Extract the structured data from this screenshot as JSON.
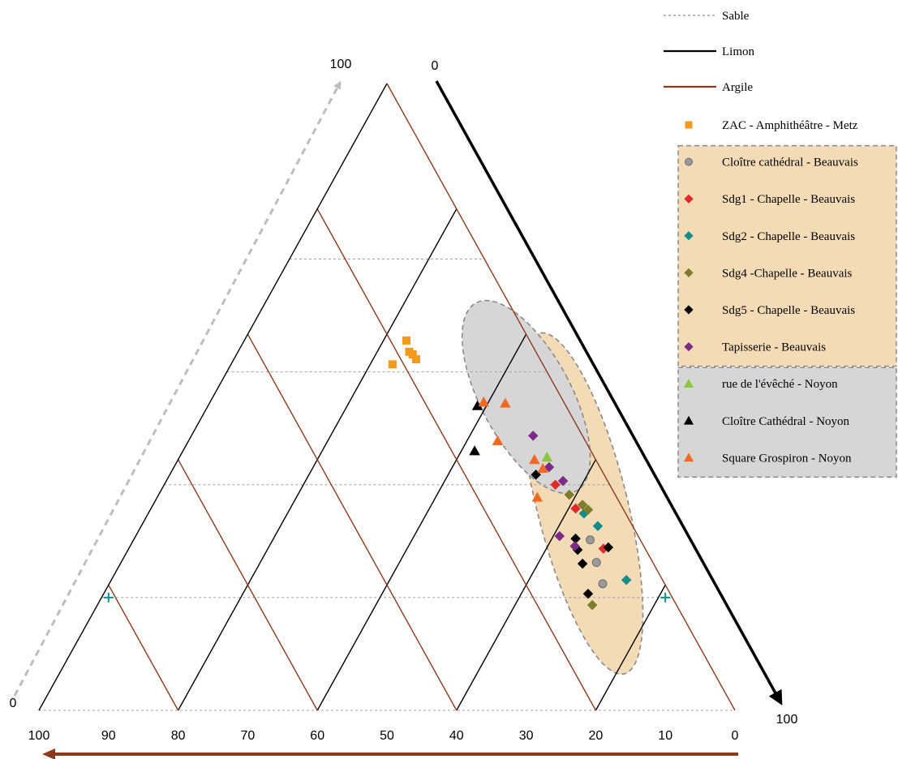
{
  "chart_data": {
    "type": "scatter",
    "subtype": "ternary",
    "axes": {
      "argile": {
        "name": "Argile",
        "ticks": [
          "100",
          "90",
          "80",
          "70",
          "60",
          "50",
          "40",
          "30",
          "20",
          "10",
          "0"
        ],
        "color": "#8b3a1e"
      },
      "sable": {
        "name": "Sable",
        "start_label": "0",
        "end_label": "100",
        "color": "#bdbdbd"
      },
      "limon": {
        "name": "Limon",
        "start_label": "0",
        "end_label": "100",
        "color": "#000000"
      }
    },
    "grid_lines": {
      "sable": {
        "name": "Sable",
        "color": "#a0a0a0",
        "style": "dotted",
        "values": [
          0,
          18,
          36,
          54,
          72
        ]
      },
      "limon": {
        "name": "Limon",
        "color": "#000000",
        "style": "solid",
        "values": [
          20,
          40,
          60,
          80
        ]
      },
      "argile": {
        "name": "Argile",
        "color": "#8b3a1e",
        "style": "solid",
        "values": [
          20,
          40,
          60,
          80
        ]
      }
    },
    "markers": [
      {
        "name": "calibration-mark",
        "argile": 90,
        "sable": 18,
        "color": "#1a8c8c"
      },
      {
        "name": "calibration-mark",
        "argile": 10,
        "sable": 18,
        "color": "#1a8c8c"
      }
    ],
    "groups": [
      {
        "name": "Beauvais",
        "color": "#f3dbb5",
        "cx": 22,
        "cy": 33,
        "rx": 6.5,
        "ry": 28,
        "angle": -14
      },
      {
        "name": "Noyon",
        "color": "#d6d6d6",
        "cx": 30,
        "cy": 50,
        "rx": 6.5,
        "ry": 17,
        "angle": -28
      }
    ],
    "legend": {
      "lines": [
        {
          "label": "Sable",
          "color": "#a0a0a0",
          "style": "dotted"
        },
        {
          "label": "Limon",
          "color": "#000000",
          "style": "solid"
        },
        {
          "label": "Argile",
          "color": "#8b3a1e",
          "style": "solid"
        }
      ],
      "series": [
        {
          "label": "ZAC - Amphithéâtre - Metz",
          "marker": "square",
          "color": "#f39a1e",
          "group": ""
        },
        {
          "label": "Cloître cathédral - Beauvais",
          "marker": "circle",
          "color": "#9a9a9a",
          "group": "Beauvais"
        },
        {
          "label": "Sdg1 - Chapelle - Beauvais",
          "marker": "diamond",
          "color": "#e32929",
          "group": "Beauvais"
        },
        {
          "label": "Sdg2 - Chapelle - Beauvais",
          "marker": "diamond",
          "color": "#158c8c",
          "group": "Beauvais"
        },
        {
          "label": "Sdg4 -Chapelle - Beauvais",
          "marker": "diamond",
          "color": "#7c7c2a",
          "group": "Beauvais"
        },
        {
          "label": "Sdg5 - Chapelle - Beauvais",
          "marker": "diamond",
          "color": "#000000",
          "group": "Beauvais"
        },
        {
          "label": "Tapisserie - Beauvais",
          "marker": "diamond",
          "color": "#7b2b86",
          "group": "Beauvais"
        },
        {
          "label": "rue de l'évêché - Noyon",
          "marker": "triangle",
          "color": "#8cc63f",
          "group": "Noyon"
        },
        {
          "label": "Cloître Cathédral - Noyon",
          "marker": "triangle",
          "color": "#000000",
          "group": "Noyon"
        },
        {
          "label": "Square Grospiron - Noyon",
          "marker": "triangle",
          "color": "#f26a21",
          "group": "Noyon"
        }
      ]
    },
    "series": [
      {
        "name": "ZAC - Amphithéâtre - Metz",
        "points": [
          [
            47.2,
            59.0
          ],
          [
            46.8,
            57.2
          ],
          [
            46.3,
            56.8
          ],
          [
            45.8,
            56.0
          ],
          [
            49.2,
            55.2
          ]
        ]
      },
      {
        "name": "Cloître cathédral - Beauvais",
        "points": [
          [
            20.8,
            27.2
          ],
          [
            19.9,
            23.6
          ],
          [
            19.0,
            20.2
          ]
        ]
      },
      {
        "name": "Sdg1 - Chapelle - Beauvais",
        "points": [
          [
            25.8,
            36.0
          ],
          [
            22.9,
            32.2
          ],
          [
            18.9,
            25.8
          ]
        ]
      },
      {
        "name": "Sdg2 - Chapelle - Beauvais",
        "points": [
          [
            21.7,
            31.4
          ],
          [
            19.7,
            29.4
          ],
          [
            15.6,
            20.8
          ]
        ]
      },
      {
        "name": "Sdg4 -Chapelle - Beauvais",
        "points": [
          [
            23.8,
            34.4
          ],
          [
            21.9,
            32.8
          ],
          [
            21.1,
            32.0
          ],
          [
            20.5,
            16.8
          ]
        ]
      },
      {
        "name": "Sdg5 - Chapelle - Beauvais",
        "points": [
          [
            28.6,
            37.6
          ],
          [
            22.9,
            27.4
          ],
          [
            22.6,
            25.6
          ],
          [
            21.9,
            23.4
          ],
          [
            18.2,
            26.0
          ],
          [
            21.1,
            18.6
          ]
        ]
      },
      {
        "name": "Tapisserie - Beauvais",
        "points": [
          [
            29.0,
            43.8
          ],
          [
            26.7,
            38.8
          ],
          [
            24.7,
            36.6
          ],
          [
            25.2,
            27.8
          ],
          [
            23.0,
            26.2
          ]
        ]
      },
      {
        "name": "rue de l'évêché - Noyon",
        "points": [
          [
            27.0,
            40.4
          ]
        ]
      },
      {
        "name": "Cloître Cathédral - Noyon",
        "points": [
          [
            37.0,
            48.6
          ],
          [
            37.4,
            41.4
          ]
        ]
      },
      {
        "name": "Square Grospiron - Noyon",
        "points": [
          [
            36.1,
            49.2
          ],
          [
            33.0,
            49.0
          ],
          [
            34.1,
            43.0
          ],
          [
            28.8,
            40.0
          ],
          [
            27.6,
            38.6
          ],
          [
            28.4,
            34.0
          ]
        ]
      }
    ]
  }
}
